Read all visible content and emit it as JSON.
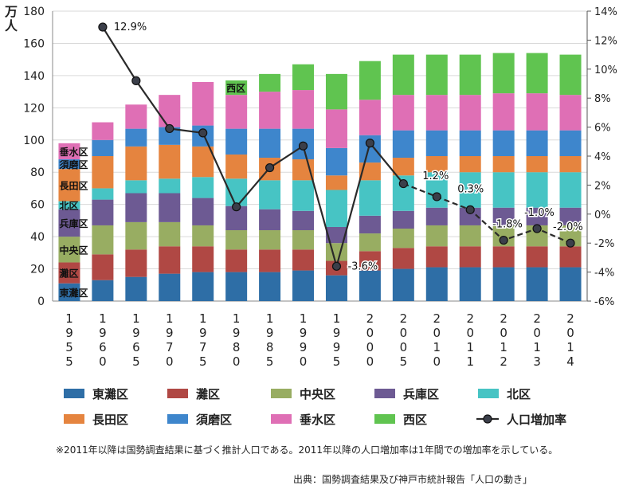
{
  "chart_data": {
    "type": "bar",
    "stacked": true,
    "title": "",
    "ylabel": "万人",
    "y2label": "",
    "ylim": [
      0,
      180
    ],
    "yticks": [
      0,
      20,
      40,
      60,
      80,
      100,
      120,
      140,
      160,
      180
    ],
    "y2lim": [
      -6,
      14
    ],
    "y2ticks": [
      "-6%",
      "-4%",
      "-2%",
      "0%",
      "2%",
      "4%",
      "6%",
      "8%",
      "10%",
      "12%",
      "14%"
    ],
    "categories": [
      "1955",
      "1960",
      "1965",
      "1970",
      "1975",
      "1980",
      "1985",
      "1990",
      "1995",
      "2000",
      "2005",
      "2010",
      "2011",
      "2012",
      "2013",
      "2014"
    ],
    "series": [
      {
        "name": "東灘区",
        "color": "#2e6ea6",
        "values": [
          11,
          13,
          15,
          17,
          18,
          18,
          18,
          19,
          16,
          19,
          20,
          21,
          21,
          21,
          21,
          21
        ]
      },
      {
        "name": "灘区",
        "color": "#b04844",
        "values": [
          13,
          16,
          17,
          17,
          16,
          14,
          14,
          13,
          9,
          12,
          13,
          13,
          13,
          13,
          13,
          13
        ]
      },
      {
        "name": "中央区",
        "color": "#98ad62",
        "values": [
          16,
          18,
          17,
          15,
          13,
          12,
          12,
          12,
          11,
          11,
          12,
          13,
          13,
          13,
          13,
          13
        ]
      },
      {
        "name": "兵庫区",
        "color": "#6d5a93",
        "values": [
          17,
          16,
          18,
          18,
          17,
          15,
          13,
          12,
          10,
          11,
          11,
          11,
          11,
          11,
          11,
          11
        ]
      },
      {
        "name": "北区",
        "color": "#47c4c4",
        "values": [
          5,
          7,
          8,
          9,
          13,
          17,
          18,
          19,
          23,
          22,
          22,
          22,
          22,
          22,
          22,
          22
        ]
      },
      {
        "name": "長田区",
        "color": "#e5843f",
        "values": [
          20,
          20,
          21,
          21,
          19,
          15,
          14,
          13,
          9,
          11,
          11,
          10,
          10,
          10,
          10,
          10
        ]
      },
      {
        "name": "須磨区",
        "color": "#3e86cc",
        "values": [
          6,
          10,
          11,
          11,
          13,
          16,
          18,
          19,
          17,
          17,
          17,
          16,
          16,
          16,
          16,
          16
        ]
      },
      {
        "name": "垂水区",
        "color": "#df6fb5",
        "values": [
          10,
          11,
          15,
          20,
          27,
          21,
          23,
          24,
          24,
          22,
          22,
          22,
          22,
          23,
          23,
          22
        ]
      },
      {
        "name": "西区",
        "color": "#60c450",
        "values": [
          0,
          0,
          0,
          0,
          0,
          9,
          11,
          16,
          22,
          24,
          25,
          25,
          25,
          25,
          25,
          25
        ]
      }
    ],
    "line": {
      "name": "人口増加率",
      "color": "#2a2a2a",
      "values": [
        null,
        12.9,
        9.2,
        5.9,
        5.6,
        0.5,
        3.2,
        4.7,
        -3.6,
        4.9,
        2.1,
        1.2,
        0.3,
        -1.8,
        -1.0,
        -2.0
      ],
      "labels": [
        "",
        "12.9%",
        "",
        "",
        "",
        "",
        "",
        "",
        "-3.6%",
        "",
        "",
        "1.2%",
        "0.3%",
        "-1.8%",
        "-1.0%",
        "-2.0%"
      ]
    },
    "inline_labels": [
      {
        "text": "垂水区",
        "category": "1955",
        "series": "垂水区"
      },
      {
        "text": "須磨区",
        "category": "1955",
        "series": "須磨区"
      },
      {
        "text": "長田区",
        "category": "1955",
        "series": "長田区"
      },
      {
        "text": "北区",
        "category": "1955",
        "series": "北区"
      },
      {
        "text": "兵庫区",
        "category": "1955",
        "series": "兵庫区"
      },
      {
        "text": "中央区",
        "category": "1955",
        "series": "中央区"
      },
      {
        "text": "灘区",
        "category": "1955",
        "series": "灘区"
      },
      {
        "text": "東灘区",
        "category": "1955",
        "series": "東灘区"
      },
      {
        "text": "西区",
        "category": "1980",
        "series": "西区"
      }
    ],
    "legend_position": "bottom",
    "grid": true
  },
  "footnote": "※2011年以降は国勢調査結果に基づく推計人口である。2011年以降の人口増加率は1年間での増加率を示している。",
  "source": "出典：国勢調査結果及び神戸市統計報告「人口の動き」"
}
